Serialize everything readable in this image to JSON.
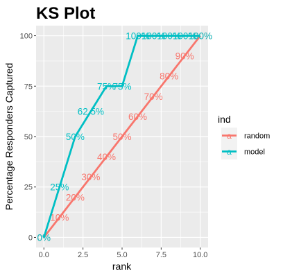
{
  "chart_data": {
    "type": "line",
    "title": "KS Plot",
    "xlabel": "rank",
    "ylabel": "Percentage Responders Captured",
    "xlim": [
      -0.5,
      10.5
    ],
    "ylim": [
      -5,
      105
    ],
    "x_ticks": [
      0,
      2.5,
      5,
      7.5,
      10
    ],
    "x_tick_labels": [
      "0.0",
      "2.5",
      "5.0",
      "7.5",
      "10.0"
    ],
    "y_ticks": [
      0,
      25,
      50,
      75,
      100
    ],
    "y_tick_labels": [
      "0",
      "25",
      "50",
      "75",
      "100"
    ],
    "grid": true,
    "background": "#ebebeb",
    "legend": {
      "title": "ind",
      "position": "right",
      "key_glyph": "a"
    },
    "series": [
      {
        "name": "random",
        "color": "#f8766d",
        "x": [
          0,
          1,
          2,
          3,
          4,
          5,
          6,
          7,
          8,
          9,
          10
        ],
        "y": [
          0,
          10,
          20,
          30,
          40,
          50,
          60,
          70,
          80,
          90,
          100
        ],
        "labels": [
          "0%",
          "10%",
          "20%",
          "30%",
          "40%",
          "50%",
          "60%",
          "70%",
          "80%",
          "90%",
          "100%"
        ]
      },
      {
        "name": "model",
        "color": "#00bfc4",
        "x": [
          0,
          1,
          2,
          3,
          4,
          5,
          6,
          7,
          8,
          9,
          10
        ],
        "y": [
          0,
          25,
          50,
          62.5,
          75,
          75,
          100,
          100,
          100,
          100,
          100
        ],
        "labels": [
          "0%",
          "25%",
          "50%",
          "62.5%",
          "75%",
          "75%",
          "100%",
          "100%",
          "100%",
          "100%",
          "100%"
        ]
      }
    ]
  }
}
